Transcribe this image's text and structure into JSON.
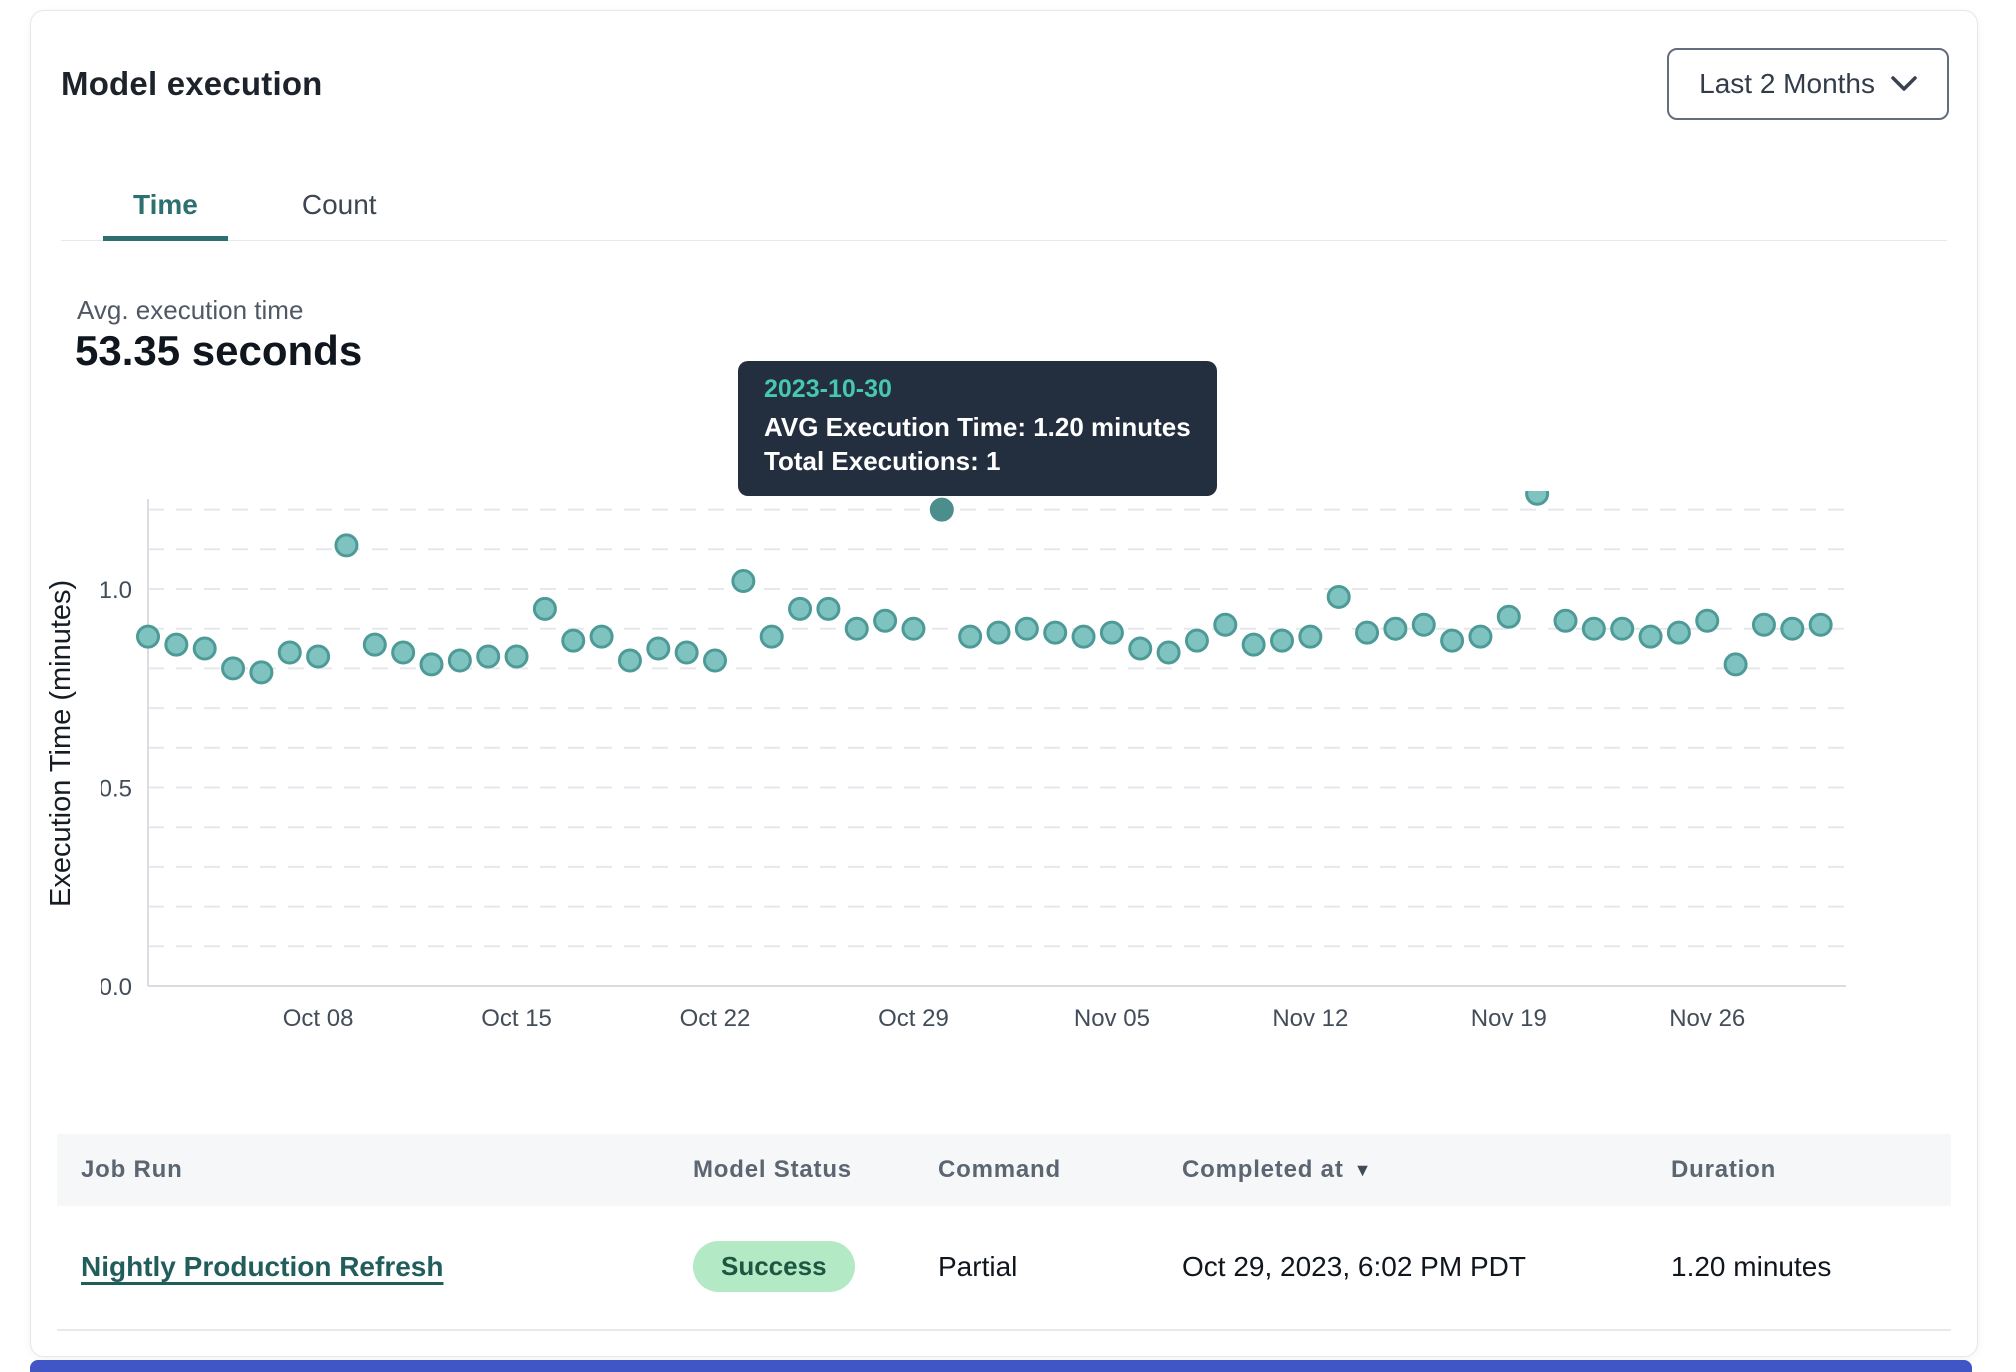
{
  "header": {
    "title": "Model execution"
  },
  "range_selector": {
    "label": "Last 2 Months"
  },
  "tabs": {
    "time": "Time",
    "count": "Count"
  },
  "summary": {
    "label": "Avg. execution time",
    "value": "53.35 seconds"
  },
  "tooltip": {
    "date": "2023-10-30",
    "avg_line": "AVG Execution Time: 1.20 minutes",
    "total_line": "Total Executions: 1"
  },
  "chart_data": {
    "type": "scatter",
    "title": "",
    "xlabel": "",
    "ylabel": "Execution Time (minutes)",
    "ylim": [
      0,
      1.3
    ],
    "yticks": [
      0.0,
      0.5,
      1.0
    ],
    "grid_step": 0.1,
    "grid_max": 1.2,
    "grid_style": "dashed horizontal",
    "legend": "none",
    "x_tick_labels": [
      "Oct 08",
      "Oct 15",
      "Oct 22",
      "Oct 29",
      "Nov 05",
      "Nov 12",
      "Nov 19",
      "Nov 26"
    ],
    "x_tick_day_index": [
      6,
      13,
      20,
      27,
      34,
      41,
      48,
      55
    ],
    "series_name": "AVG Execution Time (minutes)",
    "dates": [
      "2023-10-02",
      "2023-10-03",
      "2023-10-04",
      "2023-10-05",
      "2023-10-06",
      "2023-10-07",
      "2023-10-08",
      "2023-10-09",
      "2023-10-10",
      "2023-10-11",
      "2023-10-12",
      "2023-10-13",
      "2023-10-14",
      "2023-10-15",
      "2023-10-16",
      "2023-10-17",
      "2023-10-18",
      "2023-10-19",
      "2023-10-20",
      "2023-10-21",
      "2023-10-22",
      "2023-10-23",
      "2023-10-24",
      "2023-10-25",
      "2023-10-26",
      "2023-10-27",
      "2023-10-28",
      "2023-10-29",
      "2023-10-30",
      "2023-10-31",
      "2023-11-01",
      "2023-11-02",
      "2023-11-03",
      "2023-11-04",
      "2023-11-05",
      "2023-11-06",
      "2023-11-07",
      "2023-11-08",
      "2023-11-09",
      "2023-11-10",
      "2023-11-11",
      "2023-11-12",
      "2023-11-13",
      "2023-11-14",
      "2023-11-15",
      "2023-11-16",
      "2023-11-17",
      "2023-11-18",
      "2023-11-19",
      "2023-11-20",
      "2023-11-21",
      "2023-11-22",
      "2023-11-23",
      "2023-11-24",
      "2023-11-25",
      "2023-11-26",
      "2023-11-27",
      "2023-11-28",
      "2023-11-29",
      "2023-11-30"
    ],
    "values": [
      0.88,
      0.86,
      0.85,
      0.8,
      0.79,
      0.84,
      0.83,
      1.11,
      0.86,
      0.84,
      0.81,
      0.82,
      0.83,
      0.83,
      0.95,
      0.87,
      0.88,
      0.82,
      0.85,
      0.84,
      0.82,
      1.02,
      0.88,
      0.95,
      0.95,
      0.9,
      0.92,
      0.9,
      1.2,
      0.88,
      0.89,
      0.9,
      0.89,
      0.88,
      0.89,
      0.85,
      0.84,
      0.87,
      0.91,
      0.86,
      0.87,
      0.88,
      0.98,
      0.89,
      0.9,
      0.91,
      0.87,
      0.88,
      0.93,
      1.24,
      0.92,
      0.9,
      0.9,
      0.88,
      0.89,
      0.92,
      0.81,
      0.91,
      0.9,
      0.91
    ],
    "selected_date": "2023-10-30",
    "selected_point": {
      "date": "2023-10-30",
      "avg_execution_time_minutes": 1.2,
      "total_executions": 1
    }
  },
  "table": {
    "columns": [
      {
        "label": "Job Run"
      },
      {
        "label": "Model Status"
      },
      {
        "label": "Command"
      },
      {
        "label": "Completed at",
        "sorted": "desc"
      },
      {
        "label": "Duration"
      }
    ],
    "rows": [
      {
        "job_run": "Nightly Production Refresh",
        "model_status": "Success",
        "command": "Partial",
        "completed_at": "Oct 29, 2023, 6:02 PM PDT",
        "duration": "1.20 minutes"
      }
    ]
  },
  "colors": {
    "accent_teal": "#2e6f6f",
    "dot_fill": "#7ec3c0",
    "dot_stroke": "#4e9a97",
    "dot_selected": "#4b8e8c",
    "tooltip_bg": "#232e3f",
    "tooltip_date": "#46c8ae",
    "badge_bg": "#b3e9c5",
    "badge_text": "#1d5742",
    "link": "#215e5b",
    "grid": "#e6e7ec",
    "axis": "#d9dce1",
    "bottom_strip": "#4156c6"
  }
}
